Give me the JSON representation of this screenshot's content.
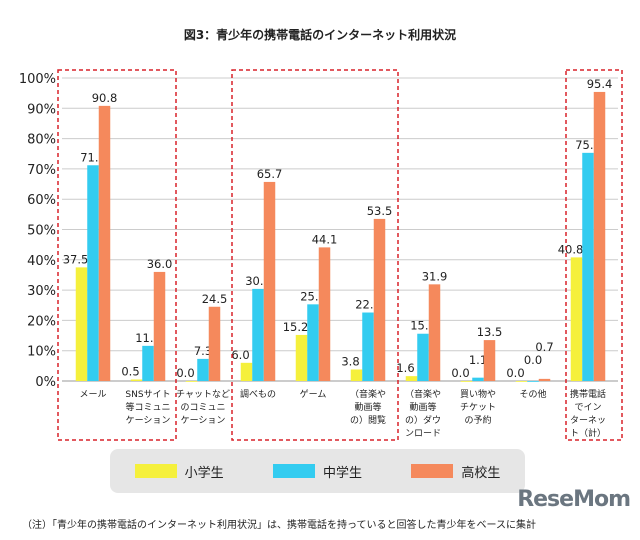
{
  "chart_data": {
    "type": "bar",
    "title": "図3：青少年の携帯電話のインターネット利用状況",
    "categories": [
      "メール",
      "SNSサイト等コミュニケーション",
      "チャットなどのコミュニケーション",
      "調べもの",
      "ゲーム",
      "（音楽や動画等の）閲覧",
      "（音楽や動画等の）ダウンロード",
      "買い物やチケットの予約",
      "その他",
      "携帯電話でインターネット（計）"
    ],
    "category_lines": [
      [
        "メール"
      ],
      [
        "SNSサイト",
        "等コミュニ",
        "ケーション"
      ],
      [
        "チャットなど",
        "のコミュニ",
        "ケーション"
      ],
      [
        "調べもの"
      ],
      [
        "ゲーム"
      ],
      [
        "（音楽や",
        "動画等",
        "の）閲覧"
      ],
      [
        "（音楽や",
        "動画等",
        "の）ダウ",
        "ンロード"
      ],
      [
        "買い物や",
        "チケット",
        "の予約"
      ],
      [
        "その他"
      ],
      [
        "携帯電話",
        "でイン",
        "ターネッ",
        "ト（計）"
      ]
    ],
    "series": [
      {
        "name": "小学生",
        "color": "#f5f03c",
        "values": [
          37.5,
          0.5,
          0.0,
          6.0,
          15.2,
          3.8,
          1.6,
          0.0,
          0.0,
          40.8
        ]
      },
      {
        "name": "中学生",
        "color": "#33ccf0",
        "values": [
          71.2,
          11.6,
          7.3,
          30.4,
          25.3,
          22.6,
          15.6,
          1.1,
          0.0,
          75.3
        ]
      },
      {
        "name": "高校生",
        "color": "#f5895c",
        "values": [
          90.8,
          36.0,
          24.5,
          65.7,
          44.1,
          53.5,
          31.9,
          13.5,
          0.7,
          95.4
        ]
      }
    ],
    "yticks": [
      "0%",
      "10%",
      "20%",
      "30%",
      "40%",
      "50%",
      "60%",
      "70%",
      "80%",
      "90%",
      "100%"
    ],
    "ylim": [
      0,
      100
    ],
    "grid": true,
    "legend": "bottom",
    "highlight_color": "#d9222a"
  },
  "note": "（注）「青少年の携帯電話のインターネット利用状況」は、携帯電話を持っていると回答した青少年をベースに集計",
  "logo": "ReseMom"
}
